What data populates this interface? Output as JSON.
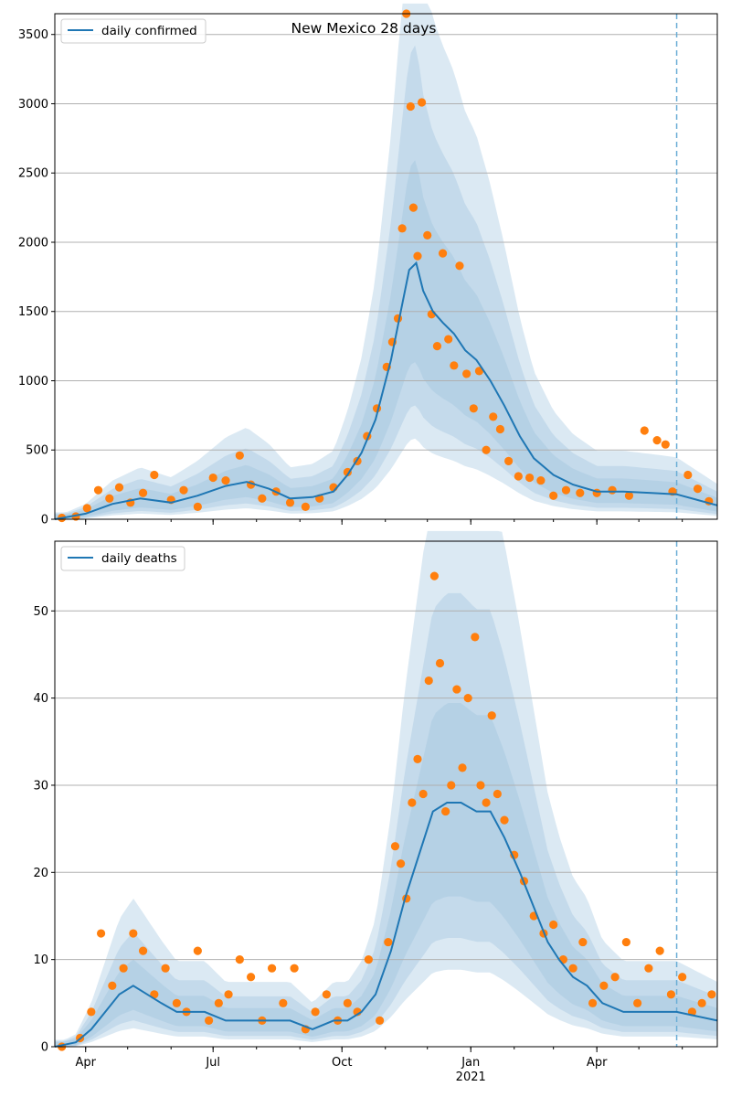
{
  "chart_data": [
    {
      "type": "line",
      "title": "New Mexico 28 days",
      "xlabel": "",
      "ylabel": "",
      "legend": {
        "entries": [
          "daily confirmed"
        ],
        "placement": "top-left"
      },
      "grid": "horizontal",
      "xlim": [
        "2020-03-10",
        "2021-06-26"
      ],
      "ylim": [
        0,
        3650
      ],
      "yticks": [
        0,
        500,
        1000,
        1500,
        2000,
        2500,
        3000,
        3500
      ],
      "xticks": [
        {
          "date": "2020-04-01",
          "label": "Apr"
        },
        {
          "date": "2020-07-01",
          "label": "Jul"
        },
        {
          "date": "2020-10-01",
          "label": "Oct"
        },
        {
          "date": "2021-01-01",
          "label": "Jan",
          "sublabel": "2021"
        },
        {
          "date": "2021-04-01",
          "label": "Apr"
        }
      ],
      "forecast_start": "2021-05-28",
      "colors": {
        "line": "#1f77b4",
        "points": "#ff7f0e",
        "band": "#1f77b4",
        "vline": "#6baed6"
      },
      "series": [
        {
          "name": "daily confirmed",
          "kind": "line",
          "x": [
            "2020-03-10",
            "2020-04-01",
            "2020-04-20",
            "2020-05-10",
            "2020-06-01",
            "2020-06-20",
            "2020-07-10",
            "2020-07-25",
            "2020-08-10",
            "2020-08-25",
            "2020-09-10",
            "2020-09-25",
            "2020-10-05",
            "2020-10-15",
            "2020-10-25",
            "2020-11-05",
            "2020-11-12",
            "2020-11-18",
            "2020-11-23",
            "2020-11-28",
            "2020-12-05",
            "2020-12-12",
            "2020-12-20",
            "2020-12-28",
            "2021-01-05",
            "2021-01-15",
            "2021-01-25",
            "2021-02-05",
            "2021-02-15",
            "2021-03-01",
            "2021-03-15",
            "2021-04-01",
            "2021-04-20",
            "2021-05-10",
            "2021-05-28",
            "2021-06-26"
          ],
          "y": [
            0,
            40,
            110,
            150,
            120,
            170,
            240,
            270,
            220,
            150,
            160,
            200,
            320,
            480,
            720,
            1150,
            1500,
            1800,
            1850,
            1650,
            1500,
            1420,
            1340,
            1220,
            1150,
            1000,
            820,
            600,
            440,
            320,
            250,
            200,
            200,
            190,
            180,
            100
          ]
        },
        {
          "name": "observed",
          "kind": "scatter",
          "x": [
            "2020-03-15",
            "2020-03-25",
            "2020-04-02",
            "2020-04-10",
            "2020-04-18",
            "2020-04-25",
            "2020-05-03",
            "2020-05-12",
            "2020-05-20",
            "2020-06-01",
            "2020-06-10",
            "2020-06-20",
            "2020-07-01",
            "2020-07-10",
            "2020-07-20",
            "2020-07-28",
            "2020-08-05",
            "2020-08-15",
            "2020-08-25",
            "2020-09-05",
            "2020-09-15",
            "2020-09-25",
            "2020-10-05",
            "2020-10-12",
            "2020-10-19",
            "2020-10-26",
            "2020-11-02",
            "2020-11-06",
            "2020-11-10",
            "2020-11-13",
            "2020-11-16",
            "2020-11-19",
            "2020-11-21",
            "2020-11-24",
            "2020-11-27",
            "2020-12-01",
            "2020-12-04",
            "2020-12-08",
            "2020-12-12",
            "2020-12-16",
            "2020-12-20",
            "2020-12-24",
            "2020-12-29",
            "2021-01-03",
            "2021-01-07",
            "2021-01-12",
            "2021-01-17",
            "2021-01-22",
            "2021-01-28",
            "2021-02-04",
            "2021-02-12",
            "2021-02-20",
            "2021-03-01",
            "2021-03-10",
            "2021-03-20",
            "2021-04-01",
            "2021-04-12",
            "2021-04-24",
            "2021-05-05",
            "2021-05-14",
            "2021-05-20",
            "2021-05-25",
            "2021-06-05",
            "2021-06-12",
            "2021-06-20"
          ],
          "y": [
            10,
            20,
            80,
            210,
            150,
            230,
            120,
            190,
            320,
            140,
            210,
            90,
            300,
            280,
            460,
            250,
            150,
            200,
            120,
            90,
            150,
            230,
            340,
            420,
            600,
            800,
            1100,
            1280,
            1450,
            2100,
            3650,
            2980,
            2250,
            1900,
            3010,
            2050,
            1480,
            1250,
            1920,
            1300,
            1110,
            1830,
            1050,
            800,
            1070,
            500,
            740,
            650,
            420,
            310,
            300,
            280,
            170,
            210,
            190,
            190,
            210,
            170,
            640,
            570,
            540,
            200,
            320,
            220,
            130
          ]
        }
      ]
    },
    {
      "type": "line",
      "title": "",
      "xlabel": "",
      "ylabel": "",
      "legend": {
        "entries": [
          "daily deaths"
        ],
        "placement": "top-left"
      },
      "grid": "horizontal",
      "xlim": [
        "2020-03-10",
        "2021-06-26"
      ],
      "ylim": [
        0,
        58
      ],
      "yticks": [
        0,
        10,
        20,
        30,
        40,
        50
      ],
      "xticks": [
        {
          "date": "2020-04-01",
          "label": "Apr"
        },
        {
          "date": "2020-07-01",
          "label": "Jul"
        },
        {
          "date": "2020-10-01",
          "label": "Oct"
        },
        {
          "date": "2021-01-01",
          "label": "Jan",
          "sublabel": "2021"
        },
        {
          "date": "2021-04-01",
          "label": "Apr"
        }
      ],
      "forecast_start": "2021-05-28",
      "colors": {
        "line": "#1f77b4",
        "points": "#ff7f0e",
        "band": "#1f77b4",
        "vline": "#6baed6"
      },
      "series": [
        {
          "name": "daily deaths",
          "kind": "line",
          "x": [
            "2020-03-10",
            "2020-03-25",
            "2020-04-05",
            "2020-04-15",
            "2020-04-25",
            "2020-05-05",
            "2020-05-15",
            "2020-05-25",
            "2020-06-05",
            "2020-06-15",
            "2020-06-25",
            "2020-07-10",
            "2020-07-25",
            "2020-08-10",
            "2020-08-25",
            "2020-09-10",
            "2020-09-25",
            "2020-10-05",
            "2020-10-15",
            "2020-10-25",
            "2020-11-05",
            "2020-11-15",
            "2020-11-25",
            "2020-12-05",
            "2020-12-15",
            "2020-12-25",
            "2021-01-05",
            "2021-01-15",
            "2021-01-25",
            "2021-02-05",
            "2021-02-15",
            "2021-02-25",
            "2021-03-05",
            "2021-03-15",
            "2021-03-25",
            "2021-04-05",
            "2021-04-20",
            "2021-05-05",
            "2021-05-20",
            "2021-05-28",
            "2021-06-26"
          ],
          "y": [
            0,
            0.5,
            2,
            4,
            6,
            7,
            6,
            5,
            4,
            4,
            4,
            3,
            3,
            3,
            3,
            2,
            3,
            3,
            4,
            6,
            11,
            17,
            22,
            27,
            28,
            28,
            27,
            27,
            24,
            20,
            16,
            12,
            10,
            8,
            7,
            5,
            4,
            4,
            4,
            4,
            3
          ]
        },
        {
          "name": "observed",
          "kind": "scatter",
          "x": [
            "2020-03-15",
            "2020-03-28",
            "2020-04-05",
            "2020-04-12",
            "2020-04-20",
            "2020-04-28",
            "2020-05-05",
            "2020-05-12",
            "2020-05-20",
            "2020-05-28",
            "2020-06-05",
            "2020-06-12",
            "2020-06-20",
            "2020-06-28",
            "2020-07-05",
            "2020-07-12",
            "2020-07-20",
            "2020-07-28",
            "2020-08-05",
            "2020-08-12",
            "2020-08-20",
            "2020-08-28",
            "2020-09-05",
            "2020-09-12",
            "2020-09-20",
            "2020-09-28",
            "2020-10-05",
            "2020-10-12",
            "2020-10-20",
            "2020-10-28",
            "2020-11-03",
            "2020-11-08",
            "2020-11-12",
            "2020-11-16",
            "2020-11-20",
            "2020-11-24",
            "2020-11-28",
            "2020-12-02",
            "2020-12-06",
            "2020-12-10",
            "2020-12-14",
            "2020-12-18",
            "2020-12-22",
            "2020-12-26",
            "2020-12-30",
            "2021-01-04",
            "2021-01-08",
            "2021-01-12",
            "2021-01-16",
            "2021-01-20",
            "2021-01-25",
            "2021-02-01",
            "2021-02-08",
            "2021-02-15",
            "2021-02-22",
            "2021-03-01",
            "2021-03-08",
            "2021-03-15",
            "2021-03-22",
            "2021-03-29",
            "2021-04-06",
            "2021-04-14",
            "2021-04-22",
            "2021-04-30",
            "2021-05-08",
            "2021-05-16",
            "2021-05-24",
            "2021-06-01",
            "2021-06-08",
            "2021-06-15",
            "2021-06-22"
          ],
          "y": [
            0,
            1,
            4,
            13,
            7,
            9,
            13,
            11,
            6,
            9,
            5,
            4,
            11,
            3,
            5,
            6,
            10,
            8,
            3,
            9,
            5,
            9,
            2,
            4,
            6,
            3,
            5,
            4,
            10,
            3,
            12,
            23,
            21,
            17,
            28,
            33,
            29,
            42,
            54,
            44,
            27,
            30,
            41,
            32,
            40,
            47,
            30,
            28,
            38,
            29,
            26,
            22,
            19,
            15,
            13,
            14,
            10,
            9,
            12,
            5,
            7,
            8,
            12,
            5,
            9,
            11,
            6,
            8,
            4,
            5,
            6
          ]
        }
      ]
    }
  ]
}
